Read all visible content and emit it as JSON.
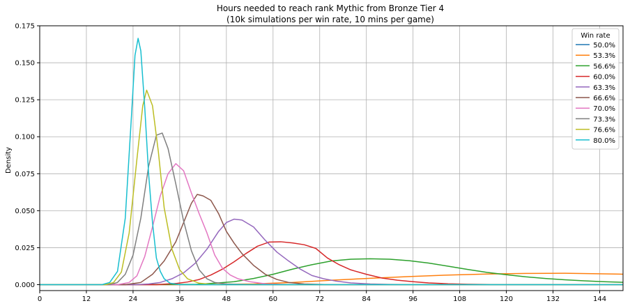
{
  "chart_data": {
    "type": "line",
    "title": "Hours needed to reach rank Mythic from Bronze Tier 4",
    "subtitle": "(10k simulations per win rate, 10 mins per game)",
    "xlabel": "",
    "ylabel": "Density",
    "xlim": [
      0,
      150
    ],
    "ylim": [
      -0.004,
      0.175
    ],
    "xticks": [
      0,
      12,
      24,
      36,
      48,
      60,
      72,
      84,
      96,
      108,
      120,
      132,
      144
    ],
    "yticks": [
      0.0,
      0.025,
      0.05,
      0.075,
      0.1,
      0.125,
      0.15,
      0.175
    ],
    "ytick_labels": [
      "0.000",
      "0.025",
      "0.050",
      "0.075",
      "0.100",
      "0.125",
      "0.150",
      "0.175"
    ],
    "grid": true,
    "legend": {
      "title": "Win rate",
      "placement": "top-right"
    },
    "series": [
      {
        "name": "50.0%",
        "color": "#1f77b4",
        "points": [
          [
            0,
            0
          ],
          [
            30,
            0
          ],
          [
            60,
            0
          ],
          [
            90,
            0
          ],
          [
            120,
            0
          ],
          [
            150,
            0
          ]
        ]
      },
      {
        "name": "53.3%",
        "color": "#ff7f0e",
        "points": [
          [
            0,
            0
          ],
          [
            40,
            0
          ],
          [
            55,
            0.0005
          ],
          [
            65,
            0.0015
          ],
          [
            75,
            0.003
          ],
          [
            85,
            0.0043
          ],
          [
            95,
            0.0055
          ],
          [
            105,
            0.0065
          ],
          [
            115,
            0.0072
          ],
          [
            125,
            0.0076
          ],
          [
            135,
            0.0077
          ],
          [
            145,
            0.0073
          ],
          [
            150,
            0.0071
          ]
        ]
      },
      {
        "name": "56.6%",
        "color": "#2ca02c",
        "points": [
          [
            0,
            0
          ],
          [
            40,
            0.0002
          ],
          [
            45,
            0.001
          ],
          [
            50,
            0.002
          ],
          [
            55,
            0.0042
          ],
          [
            60,
            0.007
          ],
          [
            65,
            0.0105
          ],
          [
            70,
            0.0135
          ],
          [
            75,
            0.016
          ],
          [
            80,
            0.0172
          ],
          [
            85,
            0.0175
          ],
          [
            90,
            0.0172
          ],
          [
            95,
            0.0162
          ],
          [
            100,
            0.0146
          ],
          [
            105,
            0.0125
          ],
          [
            110,
            0.0103
          ],
          [
            115,
            0.0083
          ],
          [
            120,
            0.0067
          ],
          [
            125,
            0.0053
          ],
          [
            130,
            0.0042
          ],
          [
            135,
            0.0033
          ],
          [
            140,
            0.0026
          ],
          [
            145,
            0.002
          ],
          [
            150,
            0.0016
          ]
        ]
      },
      {
        "name": "60.0%",
        "color": "#d62728",
        "points": [
          [
            0,
            0
          ],
          [
            30,
            0
          ],
          [
            35,
            0.0008
          ],
          [
            38,
            0.0018
          ],
          [
            41,
            0.0035
          ],
          [
            44,
            0.0065
          ],
          [
            47,
            0.0105
          ],
          [
            50,
            0.0155
          ],
          [
            53,
            0.021
          ],
          [
            56,
            0.026
          ],
          [
            59,
            0.0288
          ],
          [
            62,
            0.029
          ],
          [
            65,
            0.0282
          ],
          [
            68,
            0.027
          ],
          [
            71,
            0.0245
          ],
          [
            74,
            0.018
          ],
          [
            77,
            0.0135
          ],
          [
            80,
            0.01
          ],
          [
            84,
            0.007
          ],
          [
            88,
            0.0045
          ],
          [
            92,
            0.003
          ],
          [
            96,
            0.002
          ],
          [
            100,
            0.0012
          ],
          [
            105,
            0.0006
          ],
          [
            110,
            0.0003
          ],
          [
            120,
            0
          ],
          [
            150,
            0
          ]
        ]
      },
      {
        "name": "63.3%",
        "color": "#9467bd",
        "points": [
          [
            0,
            0
          ],
          [
            25,
            0
          ],
          [
            28,
            0.0005
          ],
          [
            31,
            0.0015
          ],
          [
            34,
            0.004
          ],
          [
            37,
            0.008
          ],
          [
            40,
            0.0145
          ],
          [
            43,
            0.024
          ],
          [
            46,
            0.036
          ],
          [
            48,
            0.042
          ],
          [
            50,
            0.0443
          ],
          [
            52,
            0.0437
          ],
          [
            55,
            0.039
          ],
          [
            58,
            0.03
          ],
          [
            61,
            0.022
          ],
          [
            64,
            0.016
          ],
          [
            67,
            0.0105
          ],
          [
            70,
            0.0062
          ],
          [
            73,
            0.004
          ],
          [
            76,
            0.0025
          ],
          [
            80,
            0.0012
          ],
          [
            85,
            0.0005
          ],
          [
            90,
            0.0002
          ],
          [
            100,
            0
          ],
          [
            150,
            0
          ]
        ]
      },
      {
        "name": "66.6%",
        "color": "#8c564b",
        "points": [
          [
            0,
            0
          ],
          [
            22,
            0
          ],
          [
            26,
            0.0015
          ],
          [
            29,
            0.007
          ],
          [
            32,
            0.016
          ],
          [
            35,
            0.029
          ],
          [
            37,
            0.042
          ],
          [
            39,
            0.055
          ],
          [
            40.5,
            0.061
          ],
          [
            42,
            0.06
          ],
          [
            44,
            0.057
          ],
          [
            46,
            0.048
          ],
          [
            48,
            0.036
          ],
          [
            50,
            0.028
          ],
          [
            52,
            0.021
          ],
          [
            55,
            0.013
          ],
          [
            58,
            0.007
          ],
          [
            61,
            0.0035
          ],
          [
            64,
            0.0015
          ],
          [
            68,
            0.0005
          ],
          [
            75,
            0
          ],
          [
            150,
            0
          ]
        ]
      },
      {
        "name": "70.0%",
        "color": "#e377c2",
        "points": [
          [
            0,
            0
          ],
          [
            20,
            0
          ],
          [
            23,
            0.0015
          ],
          [
            25,
            0.006
          ],
          [
            27,
            0.019
          ],
          [
            29,
            0.039
          ],
          [
            31,
            0.06
          ],
          [
            33,
            0.075
          ],
          [
            35,
            0.0818
          ],
          [
            37,
            0.077
          ],
          [
            39,
            0.062
          ],
          [
            41,
            0.048
          ],
          [
            43,
            0.035
          ],
          [
            45,
            0.02
          ],
          [
            47,
            0.011
          ],
          [
            49,
            0.0065
          ],
          [
            51,
            0.004
          ],
          [
            54,
            0.002
          ],
          [
            58,
            0.0006
          ],
          [
            65,
            0
          ],
          [
            150,
            0
          ]
        ]
      },
      {
        "name": "73.3%",
        "color": "#7f7f7f",
        "points": [
          [
            0,
            0
          ],
          [
            18,
            0
          ],
          [
            20,
            0.0015
          ],
          [
            22,
            0.007
          ],
          [
            24,
            0.02
          ],
          [
            26,
            0.045
          ],
          [
            28,
            0.08
          ],
          [
            30,
            0.101
          ],
          [
            31.5,
            0.1025
          ],
          [
            33,
            0.092
          ],
          [
            35,
            0.068
          ],
          [
            37,
            0.043
          ],
          [
            39,
            0.023
          ],
          [
            41,
            0.01
          ],
          [
            43,
            0.004
          ],
          [
            45,
            0.0015
          ],
          [
            48,
            0.0005
          ],
          [
            55,
            0
          ],
          [
            150,
            0
          ]
        ]
      },
      {
        "name": "76.6%",
        "color": "#bcbd22",
        "points": [
          [
            0,
            0
          ],
          [
            17,
            0
          ],
          [
            19,
            0.0015
          ],
          [
            21,
            0.0085
          ],
          [
            23,
            0.035
          ],
          [
            25,
            0.085
          ],
          [
            26.5,
            0.121
          ],
          [
            27.5,
            0.1315
          ],
          [
            29,
            0.121
          ],
          [
            30.5,
            0.09
          ],
          [
            32,
            0.052
          ],
          [
            34,
            0.024
          ],
          [
            36,
            0.01
          ],
          [
            38,
            0.004
          ],
          [
            41,
            0.001
          ],
          [
            45,
            0
          ],
          [
            150,
            0
          ]
        ]
      },
      {
        "name": "80.0%",
        "color": "#17becf",
        "points": [
          [
            0,
            0
          ],
          [
            16,
            0
          ],
          [
            18,
            0.0015
          ],
          [
            20,
            0.009
          ],
          [
            22,
            0.045
          ],
          [
            23.5,
            0.11
          ],
          [
            24.5,
            0.155
          ],
          [
            25.3,
            0.1665
          ],
          [
            26,
            0.158
          ],
          [
            27,
            0.12
          ],
          [
            28,
            0.075
          ],
          [
            29,
            0.042
          ],
          [
            30,
            0.018
          ],
          [
            31,
            0.009
          ],
          [
            32,
            0.004
          ],
          [
            33.5,
            0.001
          ],
          [
            36,
            0
          ],
          [
            150,
            0
          ]
        ]
      }
    ]
  }
}
